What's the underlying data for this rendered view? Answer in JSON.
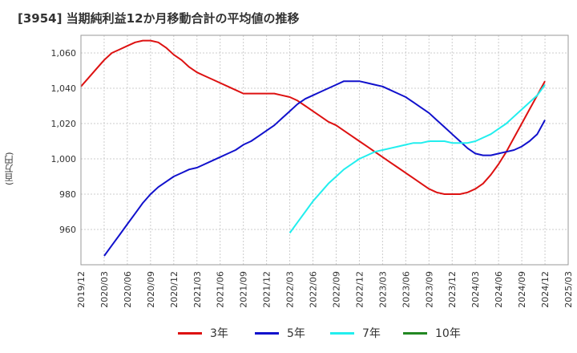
{
  "title": "[3954]  当期純利益12か月移動合計の平均値の推移",
  "ylabel": "(百万円)",
  "chart_data": {
    "type": "line",
    "title": "[3954]  当期純利益12か月移動合計の平均値の推移",
    "ylabel": "(百万円)",
    "ylim": [
      940,
      1070
    ],
    "yticks": [
      960,
      980,
      1000,
      1020,
      1040,
      1060
    ],
    "ytick_labels": [
      "960",
      "980",
      "1,000",
      "1,020",
      "1,040",
      "1,060"
    ],
    "xticks": [
      "2019/12",
      "2020/03",
      "2020/06",
      "2020/09",
      "2020/12",
      "2021/03",
      "2021/06",
      "2021/09",
      "2021/12",
      "2022/03",
      "2022/06",
      "2022/09",
      "2022/12",
      "2023/03",
      "2023/06",
      "2023/09",
      "2023/12",
      "2024/03",
      "2024/06",
      "2024/09",
      "2024/12",
      "2025/03"
    ],
    "grid": true,
    "legend_position": "bottom",
    "series": [
      {
        "name": "3年",
        "color": "#dd1111",
        "x": [
          "2019/12",
          "2020/01",
          "2020/02",
          "2020/03",
          "2020/04",
          "2020/05",
          "2020/06",
          "2020/07",
          "2020/08",
          "2020/09",
          "2020/10",
          "2020/11",
          "2020/12",
          "2021/01",
          "2021/02",
          "2021/03",
          "2021/04",
          "2021/05",
          "2021/06",
          "2021/07",
          "2021/08",
          "2021/09",
          "2021/10",
          "2021/11",
          "2021/12",
          "2022/01",
          "2022/02",
          "2022/03",
          "2022/04",
          "2022/05",
          "2022/06",
          "2022/07",
          "2022/08",
          "2022/09",
          "2022/10",
          "2022/11",
          "2022/12",
          "2023/01",
          "2023/02",
          "2023/03",
          "2023/04",
          "2023/05",
          "2023/06",
          "2023/07",
          "2023/08",
          "2023/09",
          "2023/10",
          "2023/11",
          "2023/12",
          "2024/01",
          "2024/02",
          "2024/03",
          "2024/04",
          "2024/05",
          "2024/06",
          "2024/07",
          "2024/08",
          "2024/09",
          "2024/10",
          "2024/11",
          "2024/12"
        ],
        "values": [
          1041,
          1046,
          1051,
          1056,
          1060,
          1062,
          1064,
          1066,
          1067,
          1067,
          1066,
          1063,
          1059,
          1056,
          1052,
          1049,
          1047,
          1045,
          1043,
          1041,
          1039,
          1037,
          1037,
          1037,
          1037,
          1037,
          1036,
          1035,
          1033,
          1030,
          1027,
          1024,
          1021,
          1019,
          1016,
          1013,
          1010,
          1007,
          1004,
          1001,
          998,
          995,
          992,
          989,
          986,
          983,
          981,
          980,
          980,
          980,
          981,
          983,
          986,
          991,
          997,
          1004,
          1012,
          1020,
          1028,
          1036,
          1044
        ]
      },
      {
        "name": "5年",
        "color": "#1111cc",
        "x": [
          "2020/03",
          "2020/04",
          "2020/05",
          "2020/06",
          "2020/07",
          "2020/08",
          "2020/09",
          "2020/10",
          "2020/11",
          "2020/12",
          "2021/01",
          "2021/02",
          "2021/03",
          "2021/04",
          "2021/05",
          "2021/06",
          "2021/07",
          "2021/08",
          "2021/09",
          "2021/10",
          "2021/11",
          "2021/12",
          "2022/01",
          "2022/02",
          "2022/03",
          "2022/04",
          "2022/05",
          "2022/06",
          "2022/07",
          "2022/08",
          "2022/09",
          "2022/10",
          "2022/11",
          "2022/12",
          "2023/01",
          "2023/02",
          "2023/03",
          "2023/04",
          "2023/05",
          "2023/06",
          "2023/07",
          "2023/08",
          "2023/09",
          "2023/10",
          "2023/11",
          "2023/12",
          "2024/01",
          "2024/02",
          "2024/03",
          "2024/04",
          "2024/05",
          "2024/06",
          "2024/07",
          "2024/08",
          "2024/09",
          "2024/10",
          "2024/11",
          "2024/12"
        ],
        "values": [
          945,
          951,
          957,
          963,
          969,
          975,
          980,
          984,
          987,
          990,
          992,
          994,
          995,
          997,
          999,
          1001,
          1003,
          1005,
          1008,
          1010,
          1013,
          1016,
          1019,
          1023,
          1027,
          1031,
          1034,
          1036,
          1038,
          1040,
          1042,
          1044,
          1044,
          1044,
          1043,
          1042,
          1041,
          1039,
          1037,
          1035,
          1032,
          1029,
          1026,
          1022,
          1018,
          1014,
          1010,
          1006,
          1003,
          1002,
          1002,
          1003,
          1004,
          1005,
          1007,
          1010,
          1014,
          1022
        ]
      },
      {
        "name": "7年",
        "color": "#22eeee",
        "x": [
          "2022/03",
          "2022/04",
          "2022/05",
          "2022/06",
          "2022/07",
          "2022/08",
          "2022/09",
          "2022/10",
          "2022/11",
          "2022/12",
          "2023/01",
          "2023/02",
          "2023/03",
          "2023/04",
          "2023/05",
          "2023/06",
          "2023/07",
          "2023/08",
          "2023/09",
          "2023/10",
          "2023/11",
          "2023/12",
          "2024/01",
          "2024/02",
          "2024/03",
          "2024/04",
          "2024/05",
          "2024/06",
          "2024/07",
          "2024/08",
          "2024/09",
          "2024/10",
          "2024/11",
          "2024/12"
        ],
        "values": [
          958,
          964,
          970,
          976,
          981,
          986,
          990,
          994,
          997,
          1000,
          1002,
          1004,
          1005,
          1006,
          1007,
          1008,
          1009,
          1009,
          1010,
          1010,
          1010,
          1009,
          1009,
          1009,
          1010,
          1012,
          1014,
          1017,
          1020,
          1024,
          1028,
          1032,
          1036,
          1042
        ]
      },
      {
        "name": "10年",
        "color": "#228822",
        "x": [],
        "values": []
      }
    ]
  },
  "legend": [
    {
      "name": "3年",
      "color": "#dd1111"
    },
    {
      "name": "5年",
      "color": "#1111cc"
    },
    {
      "name": "7年",
      "color": "#22eeee"
    },
    {
      "name": "10年",
      "color": "#228822"
    }
  ]
}
